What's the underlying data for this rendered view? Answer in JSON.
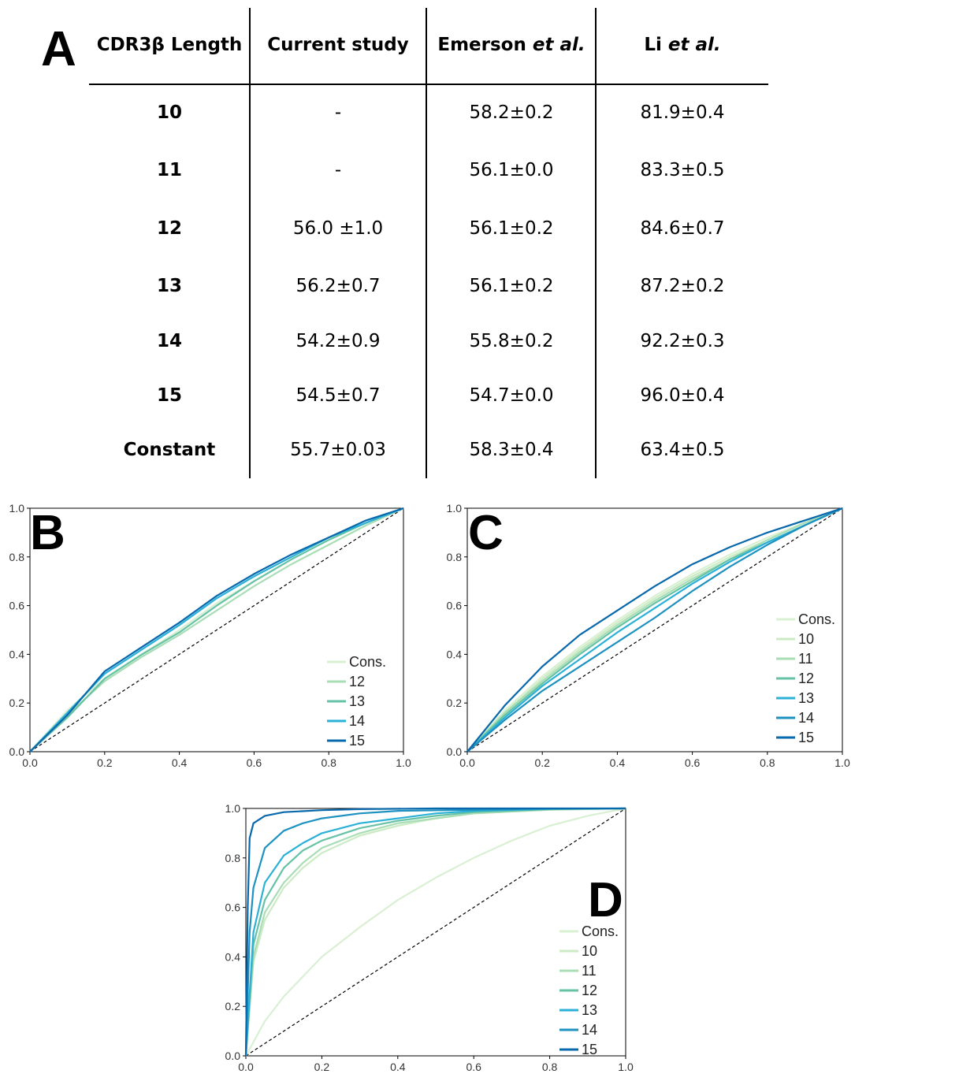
{
  "panelA": {
    "letter": "A",
    "headers": {
      "col0": "CDR3β Length",
      "col1": "Current study",
      "col2_main": "Emerson ",
      "col2_em": "et al.",
      "col3_main": "Li ",
      "col3_em": "et al."
    },
    "rows": [
      {
        "label": "10",
        "current": "-",
        "emerson": "58.2±0.2",
        "li": "81.9±0.4"
      },
      {
        "label": "11",
        "current": "-",
        "emerson": "56.1±0.0",
        "li": "83.3±0.5"
      },
      {
        "label": "12",
        "current": "56.0 ±1.0",
        "emerson": "56.1±0.2",
        "li": "84.6±0.7"
      },
      {
        "label": "13",
        "current": "56.2±0.7",
        "emerson": "56.1±0.2",
        "li": "87.2±0.2"
      },
      {
        "label": "14",
        "current": "54.2±0.9",
        "emerson": "55.8±0.2",
        "li": "92.2±0.3"
      },
      {
        "label": "15",
        "current": "54.5±0.7",
        "emerson": "54.7±0.0",
        "li": "96.0±0.4"
      },
      {
        "label": "Constant",
        "current": "55.7±0.03",
        "emerson": "58.3±0.4",
        "li": "63.4±0.5"
      }
    ]
  },
  "chart_data": [
    {
      "panel": "B",
      "type": "line",
      "xlim": [
        0,
        1
      ],
      "ylim": [
        0,
        1
      ],
      "xticks": [
        "0.0",
        "0.2",
        "0.4",
        "0.6",
        "0.8",
        "1.0"
      ],
      "yticks": [
        "0.0",
        "0.2",
        "0.4",
        "0.6",
        "0.8",
        "1.0"
      ],
      "legend_position": "lower-right",
      "diagonal": true,
      "series": [
        {
          "name": "Cons.",
          "color": "#d9f0d3",
          "x": [
            0,
            0.1,
            0.2,
            0.3,
            0.4,
            0.5,
            0.6,
            0.7,
            0.8,
            0.9,
            1.0
          ],
          "y": [
            0,
            0.17,
            0.3,
            0.4,
            0.5,
            0.61,
            0.7,
            0.79,
            0.87,
            0.94,
            1.0
          ]
        },
        {
          "name": "12",
          "color": "#a8ddb5",
          "x": [
            0,
            0.1,
            0.2,
            0.3,
            0.4,
            0.5,
            0.6,
            0.7,
            0.8,
            0.9,
            1.0
          ],
          "y": [
            0,
            0.15,
            0.29,
            0.39,
            0.48,
            0.58,
            0.68,
            0.77,
            0.85,
            0.93,
            1.0
          ]
        },
        {
          "name": "13",
          "color": "#66c2a4",
          "x": [
            0,
            0.1,
            0.2,
            0.3,
            0.4,
            0.5,
            0.6,
            0.7,
            0.8,
            0.9,
            1.0
          ],
          "y": [
            0,
            0.14,
            0.3,
            0.4,
            0.49,
            0.6,
            0.7,
            0.79,
            0.87,
            0.94,
            1.0
          ]
        },
        {
          "name": "14",
          "color": "#2bb0d8",
          "x": [
            0,
            0.1,
            0.2,
            0.3,
            0.4,
            0.5,
            0.6,
            0.7,
            0.8,
            0.9,
            1.0
          ],
          "y": [
            0,
            0.16,
            0.32,
            0.42,
            0.52,
            0.63,
            0.72,
            0.8,
            0.88,
            0.94,
            1.0
          ]
        },
        {
          "name": "15",
          "color": "#0868ac",
          "x": [
            0,
            0.1,
            0.2,
            0.3,
            0.4,
            0.5,
            0.6,
            0.7,
            0.8,
            0.9,
            1.0
          ],
          "y": [
            0,
            0.15,
            0.33,
            0.43,
            0.53,
            0.64,
            0.73,
            0.81,
            0.88,
            0.95,
            1.0
          ]
        }
      ]
    },
    {
      "panel": "C",
      "type": "line",
      "xlim": [
        0,
        1
      ],
      "ylim": [
        0,
        1
      ],
      "xticks": [
        "0.0",
        "0.2",
        "0.4",
        "0.6",
        "0.8",
        "1.0"
      ],
      "yticks": [
        "0.0",
        "0.2",
        "0.4",
        "0.6",
        "0.8",
        "1.0"
      ],
      "legend_position": "right",
      "diagonal": true,
      "series": [
        {
          "name": "Cons.",
          "color": "#d9f0d3",
          "x": [
            0,
            0.1,
            0.2,
            0.3,
            0.4,
            0.5,
            0.6,
            0.7,
            0.8,
            0.9,
            1.0
          ],
          "y": [
            0,
            0.17,
            0.31,
            0.43,
            0.54,
            0.64,
            0.73,
            0.81,
            0.88,
            0.94,
            1.0
          ]
        },
        {
          "name": "10",
          "color": "#ccebc5",
          "x": [
            0,
            0.1,
            0.2,
            0.3,
            0.4,
            0.5,
            0.6,
            0.7,
            0.8,
            0.9,
            1.0
          ],
          "y": [
            0,
            0.16,
            0.3,
            0.42,
            0.53,
            0.63,
            0.72,
            0.8,
            0.87,
            0.94,
            1.0
          ]
        },
        {
          "name": "11",
          "color": "#a8ddb5",
          "x": [
            0,
            0.1,
            0.2,
            0.3,
            0.4,
            0.5,
            0.6,
            0.7,
            0.8,
            0.9,
            1.0
          ],
          "y": [
            0,
            0.16,
            0.29,
            0.41,
            0.52,
            0.62,
            0.71,
            0.79,
            0.87,
            0.94,
            1.0
          ]
        },
        {
          "name": "12",
          "color": "#66c2a4",
          "x": [
            0,
            0.1,
            0.2,
            0.3,
            0.4,
            0.5,
            0.6,
            0.7,
            0.8,
            0.9,
            1.0
          ],
          "y": [
            0,
            0.15,
            0.28,
            0.4,
            0.51,
            0.61,
            0.7,
            0.79,
            0.86,
            0.93,
            1.0
          ]
        },
        {
          "name": "13",
          "color": "#2bb0d8",
          "x": [
            0,
            0.1,
            0.2,
            0.3,
            0.4,
            0.5,
            0.6,
            0.7,
            0.8,
            0.9,
            1.0
          ],
          "y": [
            0,
            0.14,
            0.27,
            0.38,
            0.49,
            0.59,
            0.69,
            0.78,
            0.86,
            0.93,
            1.0
          ]
        },
        {
          "name": "14",
          "color": "#1d91c0",
          "x": [
            0,
            0.1,
            0.2,
            0.3,
            0.4,
            0.5,
            0.6,
            0.7,
            0.8,
            0.9,
            1.0
          ],
          "y": [
            0,
            0.13,
            0.25,
            0.35,
            0.45,
            0.55,
            0.66,
            0.76,
            0.85,
            0.93,
            1.0
          ]
        },
        {
          "name": "15",
          "color": "#0868ac",
          "x": [
            0,
            0.1,
            0.2,
            0.3,
            0.4,
            0.5,
            0.6,
            0.7,
            0.8,
            0.9,
            1.0
          ],
          "y": [
            0,
            0.19,
            0.35,
            0.48,
            0.58,
            0.68,
            0.77,
            0.84,
            0.9,
            0.95,
            1.0
          ]
        }
      ]
    },
    {
      "panel": "D",
      "type": "line",
      "xlim": [
        0,
        1
      ],
      "ylim": [
        0,
        1
      ],
      "xticks": [
        "0.0",
        "0.2",
        "0.4",
        "0.6",
        "0.8",
        "1.0"
      ],
      "yticks": [
        "0.0",
        "0.2",
        "0.4",
        "0.6",
        "0.8",
        "1.0"
      ],
      "legend_position": "lower-right",
      "diagonal": true,
      "series": [
        {
          "name": "Cons.",
          "color": "#d9f0d3",
          "x": [
            0,
            0.05,
            0.1,
            0.2,
            0.3,
            0.4,
            0.5,
            0.6,
            0.7,
            0.8,
            0.9,
            1.0
          ],
          "y": [
            0,
            0.14,
            0.24,
            0.4,
            0.52,
            0.63,
            0.72,
            0.8,
            0.87,
            0.93,
            0.97,
            1.0
          ]
        },
        {
          "name": "10",
          "color": "#ccebc5",
          "x": [
            0,
            0.02,
            0.05,
            0.1,
            0.15,
            0.2,
            0.3,
            0.4,
            0.5,
            0.6,
            0.8,
            1.0
          ],
          "y": [
            0,
            0.38,
            0.55,
            0.68,
            0.76,
            0.82,
            0.89,
            0.93,
            0.96,
            0.98,
            0.995,
            1.0
          ]
        },
        {
          "name": "11",
          "color": "#a8ddb5",
          "x": [
            0,
            0.02,
            0.05,
            0.1,
            0.15,
            0.2,
            0.3,
            0.4,
            0.5,
            0.6,
            0.8,
            1.0
          ],
          "y": [
            0,
            0.4,
            0.58,
            0.7,
            0.78,
            0.84,
            0.9,
            0.94,
            0.96,
            0.98,
            0.995,
            1.0
          ]
        },
        {
          "name": "12",
          "color": "#66c2a4",
          "x": [
            0,
            0.02,
            0.05,
            0.1,
            0.15,
            0.2,
            0.3,
            0.4,
            0.5,
            0.6,
            0.8,
            1.0
          ],
          "y": [
            0,
            0.45,
            0.63,
            0.76,
            0.83,
            0.87,
            0.92,
            0.95,
            0.97,
            0.985,
            0.997,
            1.0
          ]
        },
        {
          "name": "13",
          "color": "#2bb0d8",
          "x": [
            0,
            0.02,
            0.05,
            0.1,
            0.15,
            0.2,
            0.3,
            0.4,
            0.5,
            0.6,
            0.8,
            1.0
          ],
          "y": [
            0,
            0.5,
            0.7,
            0.81,
            0.86,
            0.9,
            0.94,
            0.96,
            0.98,
            0.99,
            0.998,
            1.0
          ]
        },
        {
          "name": "14",
          "color": "#1d91c0",
          "x": [
            0,
            0.01,
            0.02,
            0.05,
            0.1,
            0.15,
            0.2,
            0.3,
            0.4,
            0.6,
            0.8,
            1.0
          ],
          "y": [
            0,
            0.5,
            0.68,
            0.84,
            0.91,
            0.94,
            0.96,
            0.98,
            0.99,
            0.995,
            0.999,
            1.0
          ]
        },
        {
          "name": "15",
          "color": "#0868ac",
          "x": [
            0,
            0.005,
            0.01,
            0.02,
            0.05,
            0.1,
            0.2,
            0.3,
            0.5,
            0.7,
            0.9,
            1.0
          ],
          "y": [
            0,
            0.6,
            0.88,
            0.94,
            0.97,
            0.985,
            0.993,
            0.997,
            1.0,
            1.0,
            1.0,
            1.0
          ]
        }
      ]
    }
  ]
}
